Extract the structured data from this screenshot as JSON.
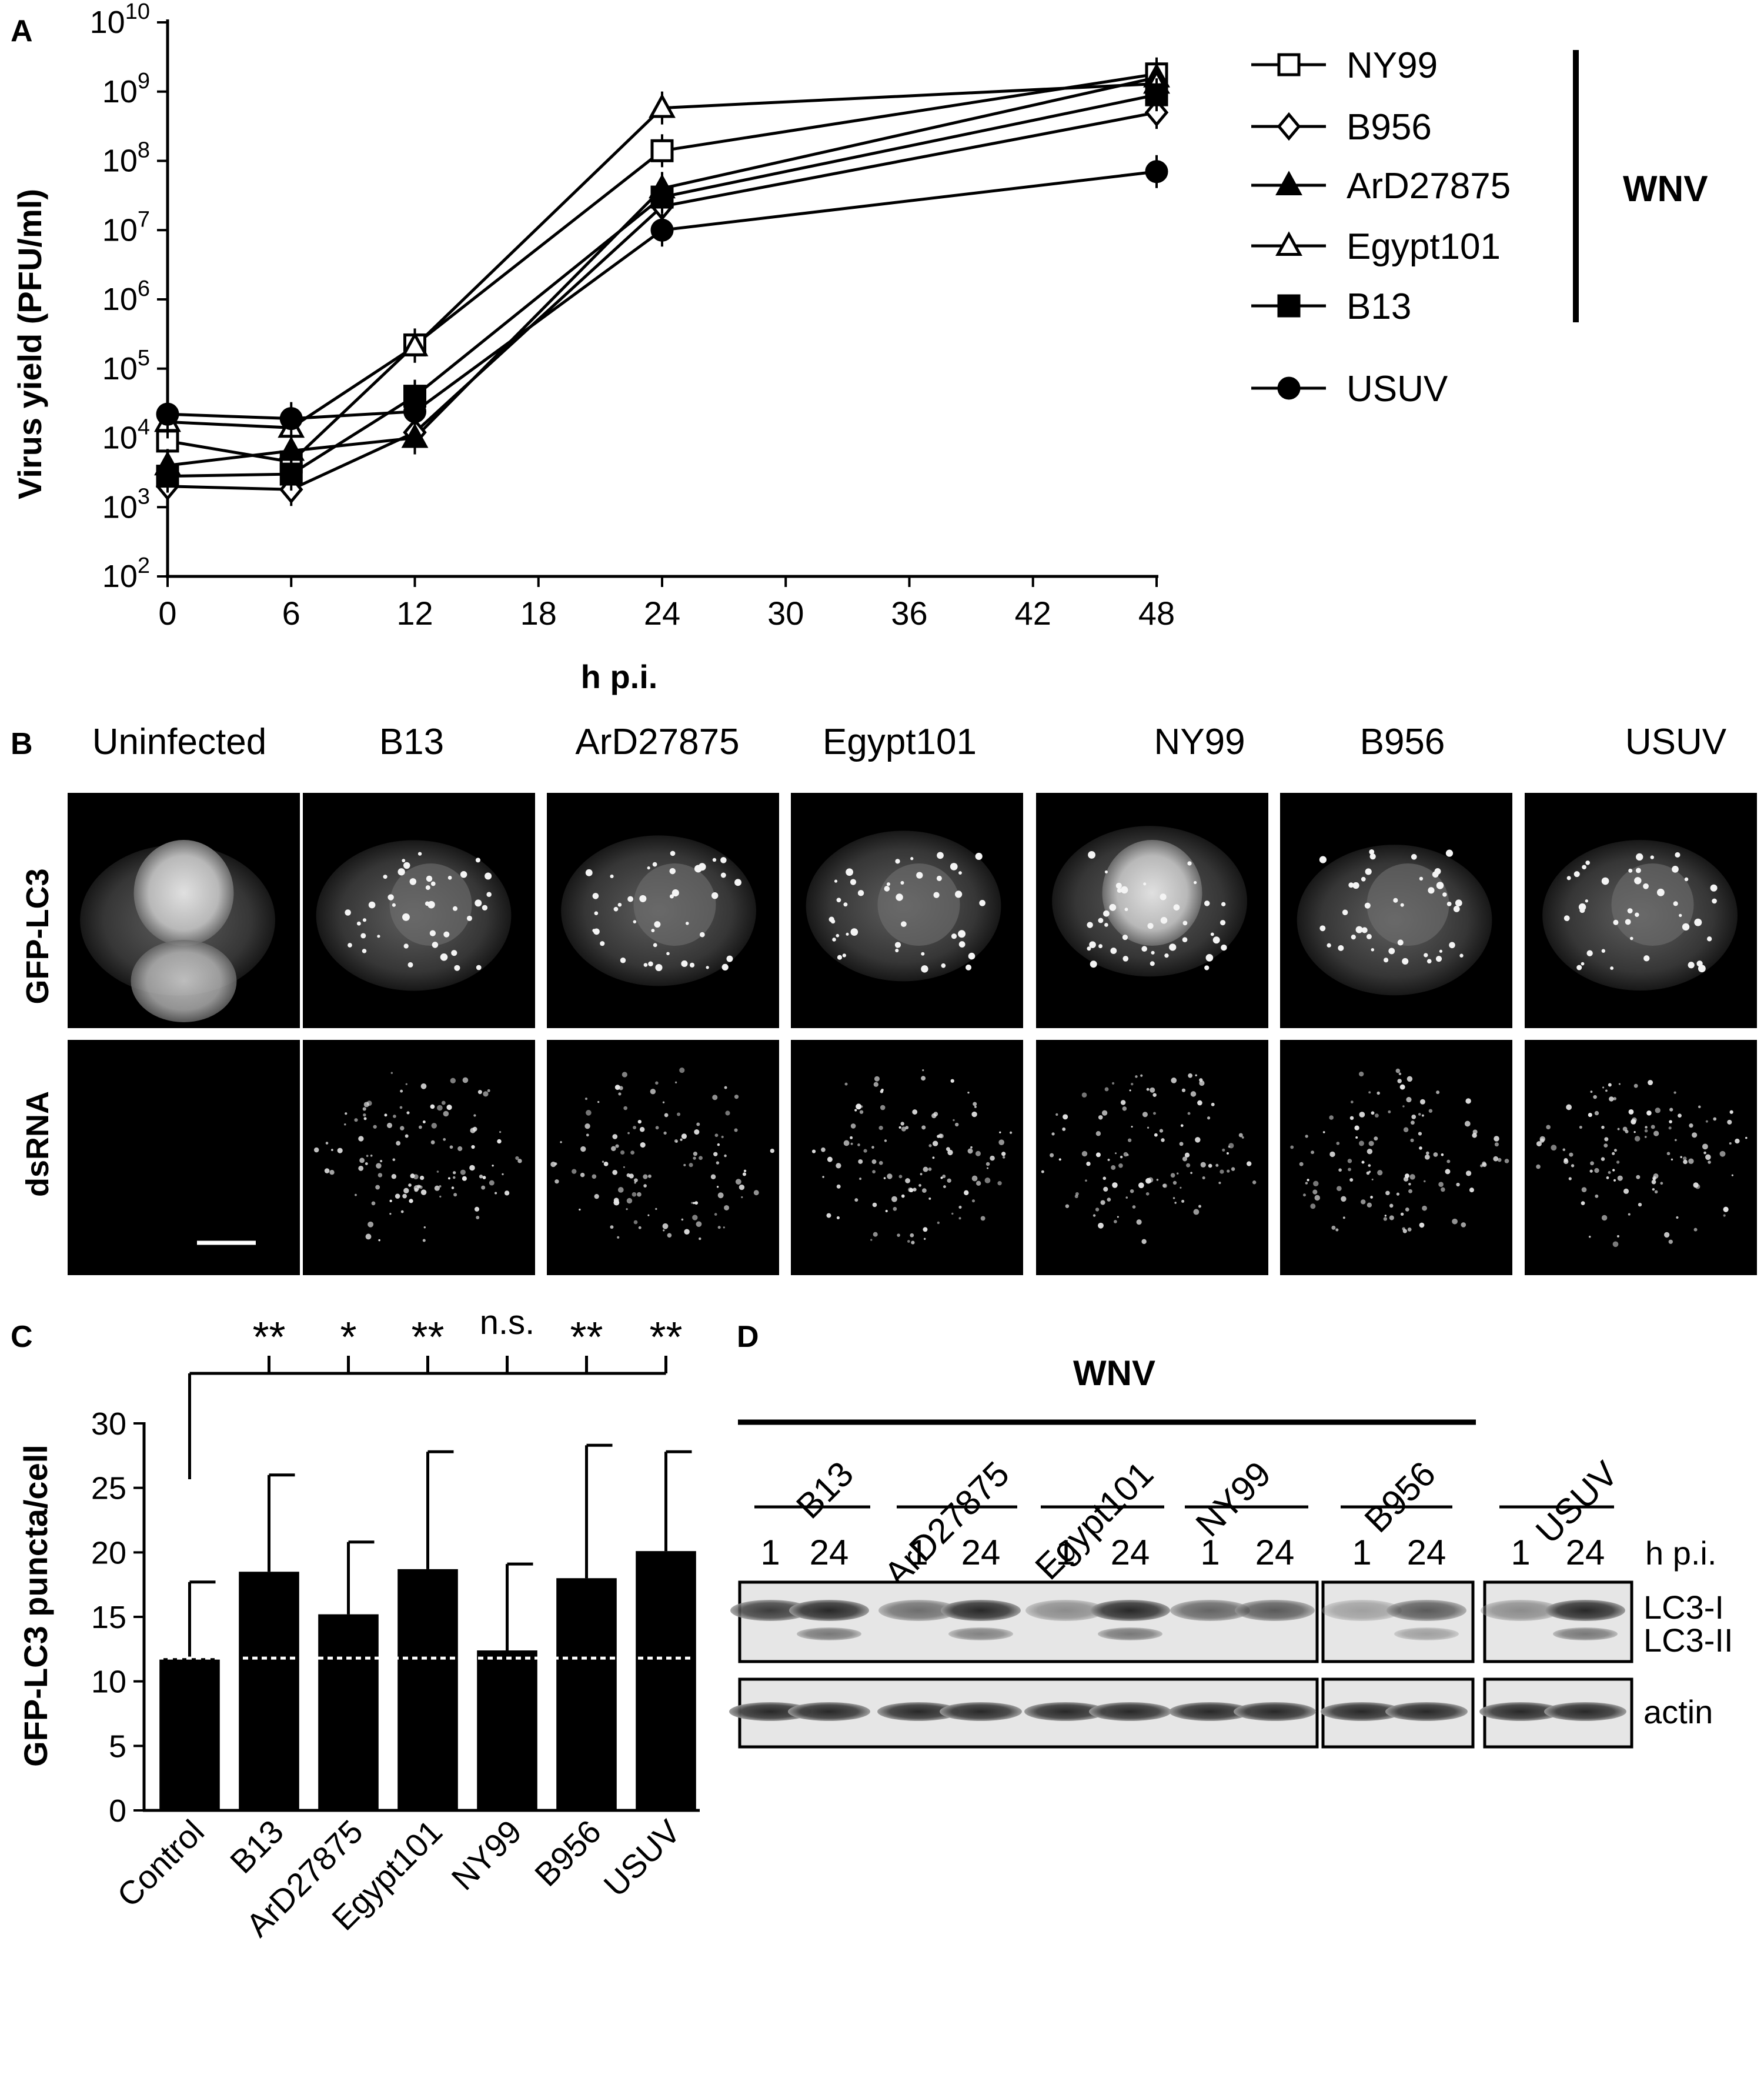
{
  "panels": {
    "a": {
      "letter": "A",
      "chart_data": {
        "type": "line",
        "xlabel": "h p.i.",
        "ylabel": "Virus yield (PFU/ml)",
        "x_ticks": [
          0,
          6,
          12,
          18,
          24,
          30,
          36,
          42,
          48
        ],
        "xlim": [
          0,
          48
        ],
        "ylim": [
          100,
          10000000000
        ],
        "yscale": "log",
        "y_tick_labels": [
          {
            "base": "10",
            "exp": "2"
          },
          {
            "base": "10",
            "exp": "3"
          },
          {
            "base": "10",
            "exp": "4"
          },
          {
            "base": "10",
            "exp": "5"
          },
          {
            "base": "10",
            "exp": "6"
          },
          {
            "base": "10",
            "exp": "7"
          },
          {
            "base": "10",
            "exp": "8"
          },
          {
            "base": "10",
            "exp": "9"
          },
          {
            "base": "10",
            "exp": "10"
          }
        ],
        "x": [
          0,
          6,
          12,
          24,
          48
        ],
        "legend_position": "right",
        "group_label": "WNV",
        "series": [
          {
            "name": "NY99",
            "marker": "square-open",
            "values": [
              9000,
              4500,
              220000,
              140000000,
              1800000000
            ]
          },
          {
            "name": "B956",
            "marker": "diamond-open",
            "values": [
              2000,
              1800,
              12000,
              22000000,
              500000000
            ]
          },
          {
            "name": "ArD27875",
            "marker": "triangle-filled",
            "values": [
              4000,
              6500,
              10000,
              40000000,
              1600000000
            ]
          },
          {
            "name": "Egypt101",
            "marker": "triangle-open",
            "values": [
              17000,
              14000,
              210000,
              580000000,
              1300000000
            ]
          },
          {
            "name": "B13",
            "marker": "square-filled",
            "values": [
              2800,
              3000,
              40000,
              30000000,
              900000000
            ]
          },
          {
            "name": "USUV",
            "marker": "circle-filled",
            "values": [
              22000,
              19000,
              24000,
              10000000,
              70000000
            ]
          }
        ]
      }
    },
    "b": {
      "letter": "B",
      "columns": [
        "Uninfected",
        "B13",
        "ArD27875",
        "Egypt101",
        "NY99",
        "B956",
        "USUV"
      ],
      "rows": [
        "GFP-LC3",
        "dsRNA"
      ]
    },
    "c": {
      "letter": "C",
      "chart_data": {
        "type": "bar",
        "ylabel": "GFP-LC3 puncta/cell",
        "ylim": [
          0,
          30
        ],
        "y_ticks": [
          0,
          5,
          10,
          15,
          20,
          25,
          30
        ],
        "categories": [
          "Control",
          "B13",
          "ArD27875",
          "Egypt101",
          "NY99",
          "B956",
          "USUV"
        ],
        "values": [
          11.8,
          18.5,
          15.2,
          18.7,
          12.4,
          18.0,
          20.1
        ],
        "error_upper": [
          17.7,
          26.0,
          20.8,
          27.8,
          19.1,
          28.3,
          27.8
        ],
        "reference_line": 11.8,
        "significance": [
          "**",
          "*",
          "**",
          "n.s.",
          "**",
          "**"
        ]
      }
    },
    "d": {
      "letter": "D",
      "group_label": "WNV",
      "lanes": [
        "B13",
        "ArD27875",
        "Egypt101",
        "NY99",
        "B956",
        "USUV"
      ],
      "timepoints": [
        "1",
        "24"
      ],
      "time_unit": "h p.i.",
      "bands": [
        "LC3-I",
        "LC3-II",
        "actin"
      ]
    }
  },
  "colors": {
    "ink": "#000000",
    "paper": "#ffffff",
    "gel": "#e4e4e4",
    "band": "#3a3a3a",
    "micro_bg": "#000000"
  }
}
